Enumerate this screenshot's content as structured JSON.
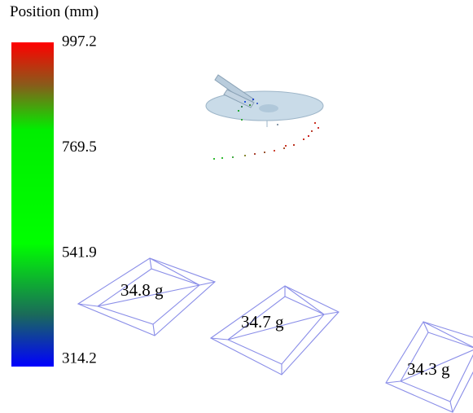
{
  "legend": {
    "title": "Position (mm)",
    "ticks": [
      997.2,
      769.5,
      541.9,
      314.2
    ]
  },
  "trays": [
    {
      "label": "34.8 g"
    },
    {
      "label": "34.7 g"
    },
    {
      "label": "34.3 g"
    }
  ]
}
